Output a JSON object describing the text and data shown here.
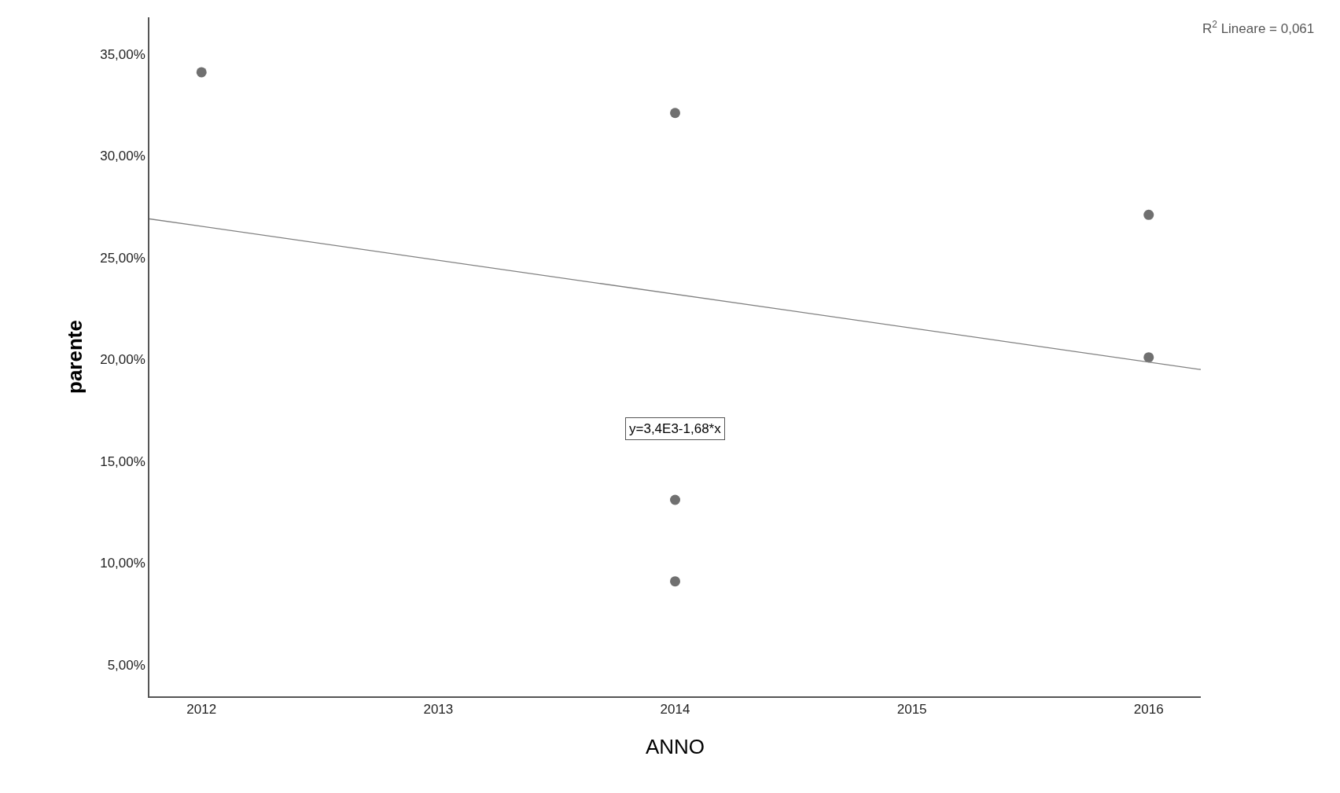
{
  "chart_data": {
    "type": "scatter",
    "xlabel": "ANNO",
    "ylabel": "parente",
    "series": [
      {
        "color": "#707070",
        "x": [
          2012,
          2014,
          2014,
          2014,
          2016,
          2016
        ],
        "values": [
          34.1,
          32.1,
          13.1,
          9.1,
          27.1,
          20.1
        ],
        "marker": "circle"
      },
      {
        "type": "line",
        "color": "#808080",
        "x": [
          2011.78,
          2016.22
        ],
        "values": [
          26.9,
          19.5
        ],
        "marker": "none",
        "line_style": "solid"
      }
    ],
    "xlim": [
      2011.78,
      2016.22
    ],
    "xticks": [
      2012,
      2013,
      2014,
      2015,
      2016
    ],
    "ylim": [
      3.45,
      36.8
    ],
    "yticks": [
      {
        "value": 5,
        "label": "5,00%"
      },
      {
        "value": 10,
        "label": "10,00%"
      },
      {
        "value": 15,
        "label": "15,00%"
      },
      {
        "value": 20,
        "label": "20,00%"
      },
      {
        "value": 25,
        "label": "25,00%"
      },
      {
        "value": 30,
        "label": "30,00%"
      },
      {
        "value": 35,
        "label": "35,00%"
      }
    ],
    "annotations": [
      "R$^{2}$ Lineare = 0,061",
      "y=3,4E3-1,68*x"
    ]
  }
}
